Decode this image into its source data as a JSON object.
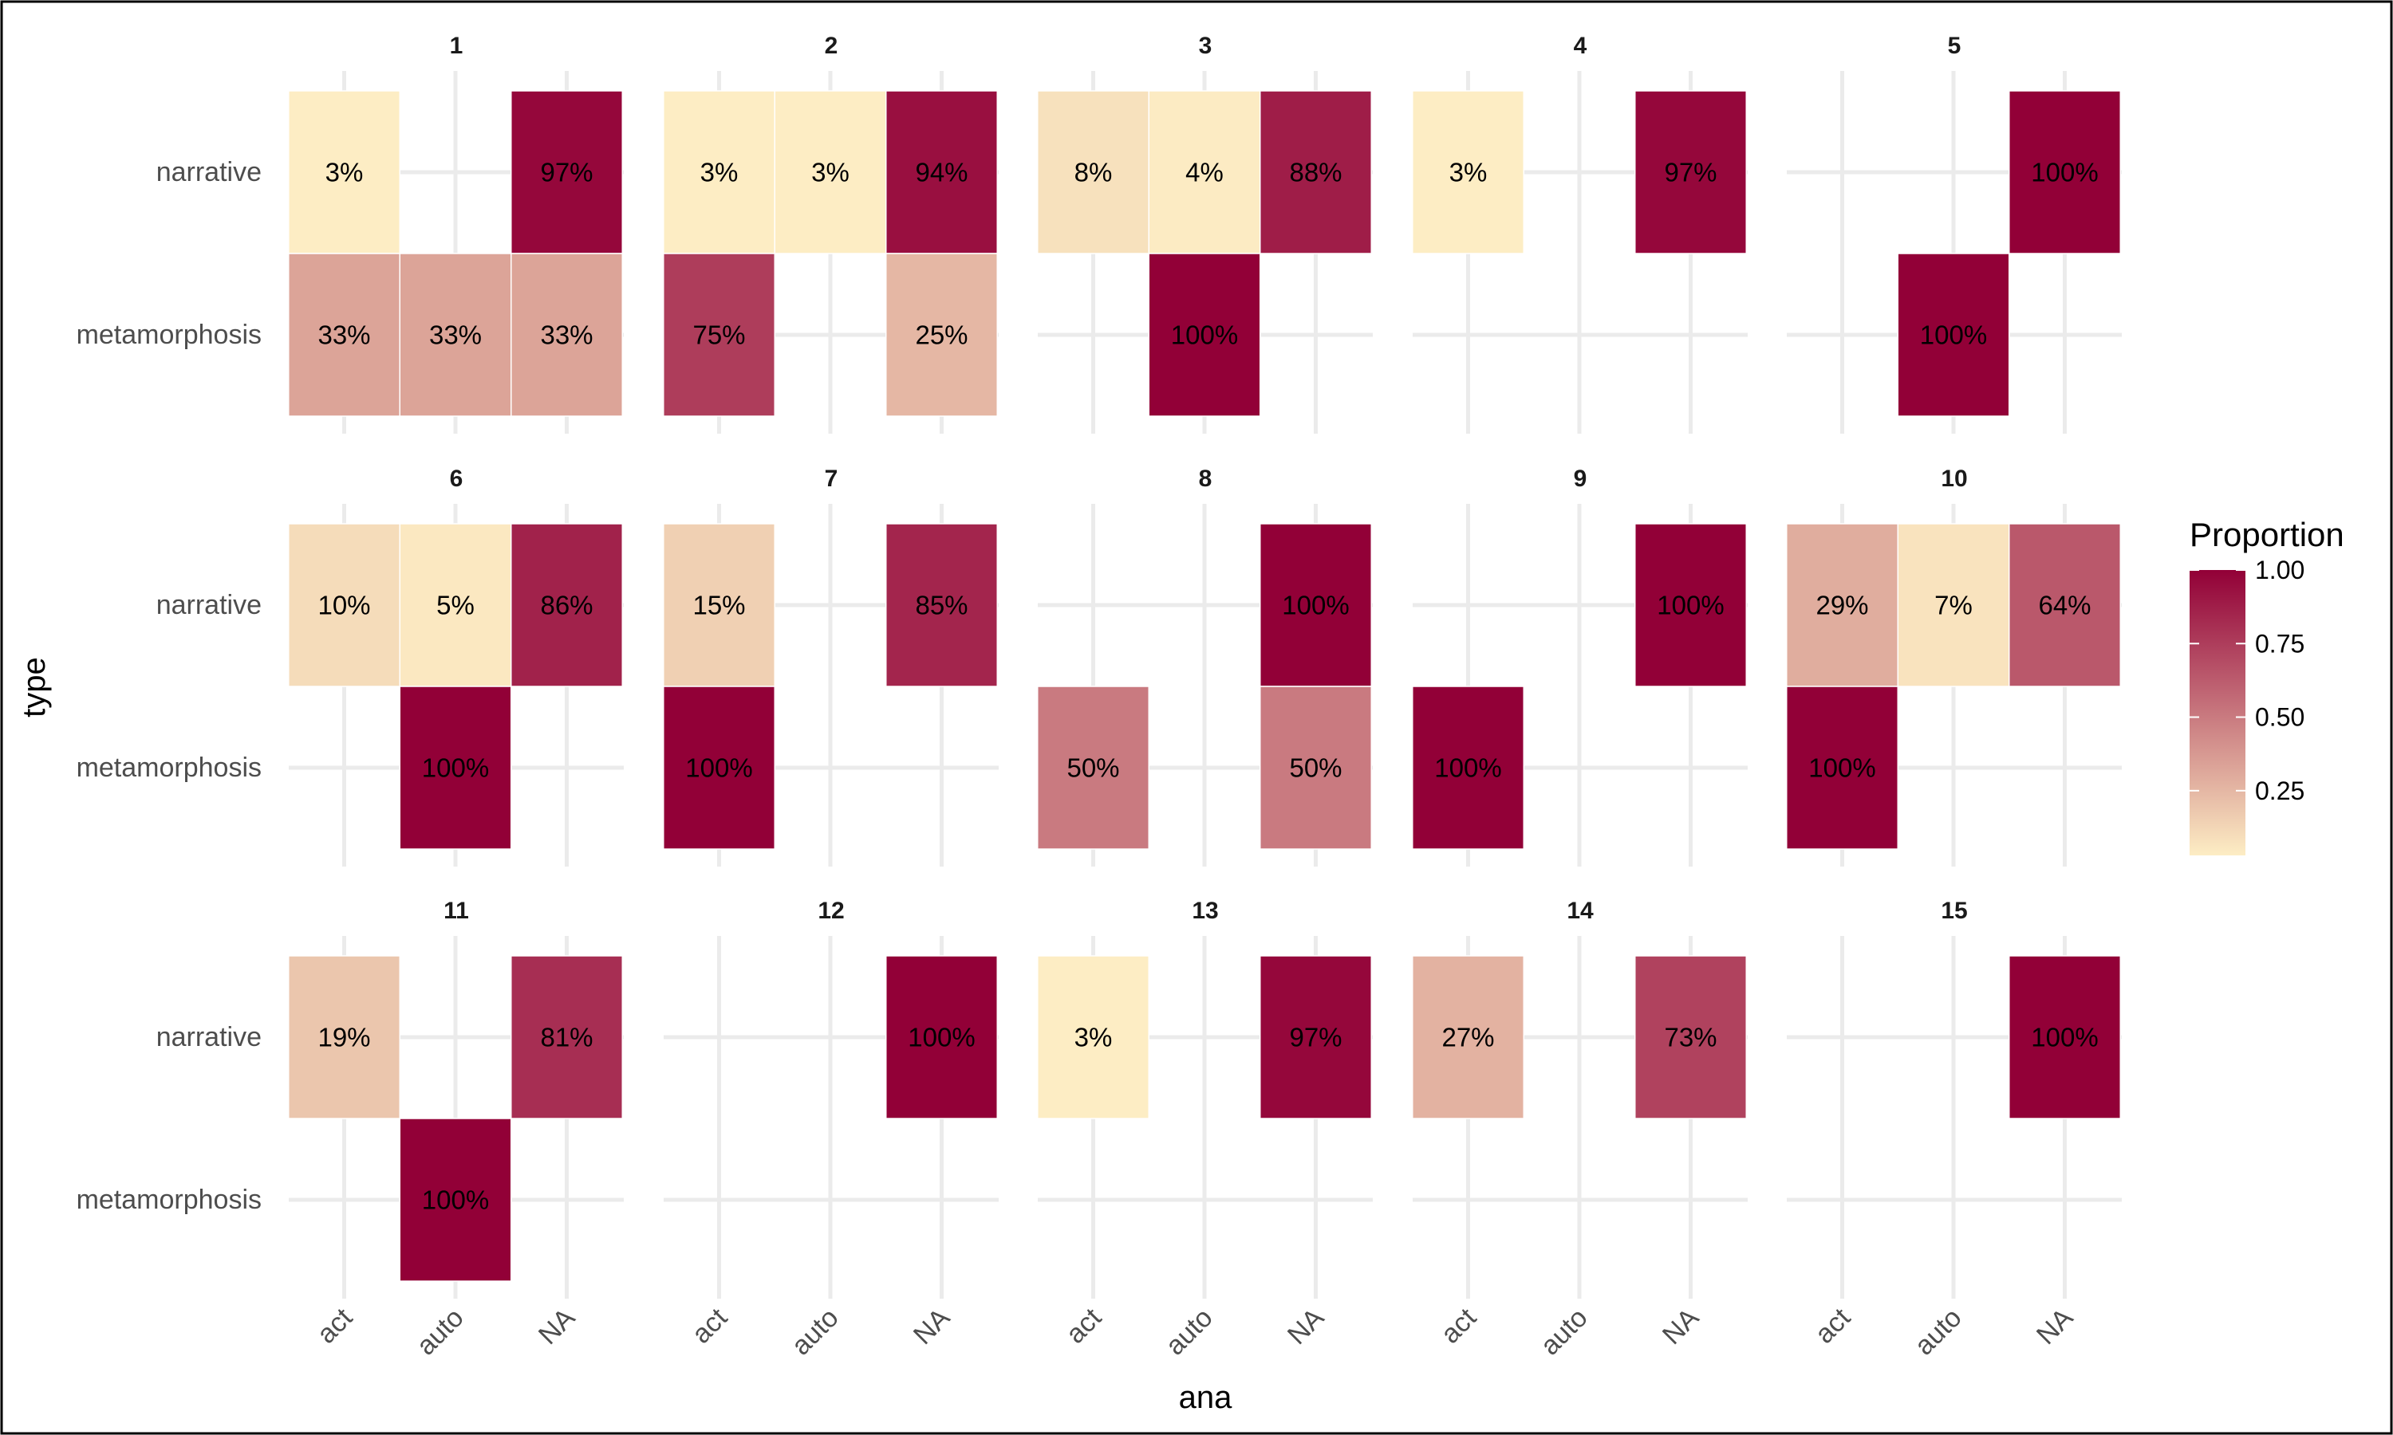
{
  "chart_data": {
    "type": "heatmap",
    "facet_variable": "facet",
    "facets": [
      "1",
      "2",
      "3",
      "4",
      "5",
      "6",
      "7",
      "8",
      "9",
      "10",
      "11",
      "12",
      "13",
      "14",
      "15"
    ],
    "x_categories": [
      "act",
      "auto",
      "NA"
    ],
    "y_categories": [
      "narrative",
      "metamorphosis"
    ],
    "xlabel": "ana",
    "ylabel": "type",
    "legend": {
      "title": "Proportion",
      "ticks": [
        "1.00",
        "0.75",
        "0.50",
        "0.25"
      ],
      "tick_values": [
        1.0,
        0.75,
        0.5,
        0.25
      ],
      "range": [
        0.03,
        1.0
      ],
      "low_color": "#fdedc4",
      "high_color": "#920037",
      "placement": "right"
    },
    "cells": [
      {
        "facet": "1",
        "x": "act",
        "y": "narrative",
        "value": 0.03,
        "label": "3%"
      },
      {
        "facet": "1",
        "x": "NA",
        "y": "narrative",
        "value": 0.97,
        "label": "97%"
      },
      {
        "facet": "1",
        "x": "act",
        "y": "metamorphosis",
        "value": 0.33,
        "label": "33%"
      },
      {
        "facet": "1",
        "x": "auto",
        "y": "metamorphosis",
        "value": 0.33,
        "label": "33%"
      },
      {
        "facet": "1",
        "x": "NA",
        "y": "metamorphosis",
        "value": 0.33,
        "label": "33%"
      },
      {
        "facet": "2",
        "x": "act",
        "y": "narrative",
        "value": 0.03,
        "label": "3%"
      },
      {
        "facet": "2",
        "x": "auto",
        "y": "narrative",
        "value": 0.03,
        "label": "3%"
      },
      {
        "facet": "2",
        "x": "NA",
        "y": "narrative",
        "value": 0.94,
        "label": "94%"
      },
      {
        "facet": "2",
        "x": "act",
        "y": "metamorphosis",
        "value": 0.75,
        "label": "75%"
      },
      {
        "facet": "2",
        "x": "NA",
        "y": "metamorphosis",
        "value": 0.25,
        "label": "25%"
      },
      {
        "facet": "3",
        "x": "act",
        "y": "narrative",
        "value": 0.08,
        "label": "8%"
      },
      {
        "facet": "3",
        "x": "auto",
        "y": "narrative",
        "value": 0.04,
        "label": "4%"
      },
      {
        "facet": "3",
        "x": "NA",
        "y": "narrative",
        "value": 0.88,
        "label": "88%"
      },
      {
        "facet": "3",
        "x": "auto",
        "y": "metamorphosis",
        "value": 1.0,
        "label": "100%"
      },
      {
        "facet": "4",
        "x": "act",
        "y": "narrative",
        "value": 0.03,
        "label": "3%"
      },
      {
        "facet": "4",
        "x": "NA",
        "y": "narrative",
        "value": 0.97,
        "label": "97%"
      },
      {
        "facet": "5",
        "x": "NA",
        "y": "narrative",
        "value": 1.0,
        "label": "100%"
      },
      {
        "facet": "5",
        "x": "auto",
        "y": "metamorphosis",
        "value": 1.0,
        "label": "100%"
      },
      {
        "facet": "6",
        "x": "act",
        "y": "narrative",
        "value": 0.1,
        "label": "10%"
      },
      {
        "facet": "6",
        "x": "auto",
        "y": "narrative",
        "value": 0.05,
        "label": "5%"
      },
      {
        "facet": "6",
        "x": "NA",
        "y": "narrative",
        "value": 0.86,
        "label": "86%"
      },
      {
        "facet": "6",
        "x": "auto",
        "y": "metamorphosis",
        "value": 1.0,
        "label": "100%"
      },
      {
        "facet": "7",
        "x": "act",
        "y": "narrative",
        "value": 0.15,
        "label": "15%"
      },
      {
        "facet": "7",
        "x": "NA",
        "y": "narrative",
        "value": 0.85,
        "label": "85%"
      },
      {
        "facet": "7",
        "x": "act",
        "y": "metamorphosis",
        "value": 1.0,
        "label": "100%"
      },
      {
        "facet": "8",
        "x": "NA",
        "y": "narrative",
        "value": 1.0,
        "label": "100%"
      },
      {
        "facet": "8",
        "x": "act",
        "y": "metamorphosis",
        "value": 0.5,
        "label": "50%"
      },
      {
        "facet": "8",
        "x": "NA",
        "y": "metamorphosis",
        "value": 0.5,
        "label": "50%"
      },
      {
        "facet": "9",
        "x": "NA",
        "y": "narrative",
        "value": 1.0,
        "label": "100%"
      },
      {
        "facet": "9",
        "x": "act",
        "y": "metamorphosis",
        "value": 1.0,
        "label": "100%"
      },
      {
        "facet": "10",
        "x": "act",
        "y": "narrative",
        "value": 0.29,
        "label": "29%"
      },
      {
        "facet": "10",
        "x": "auto",
        "y": "narrative",
        "value": 0.07,
        "label": "7%"
      },
      {
        "facet": "10",
        "x": "NA",
        "y": "narrative",
        "value": 0.64,
        "label": "64%"
      },
      {
        "facet": "10",
        "x": "act",
        "y": "metamorphosis",
        "value": 1.0,
        "label": "100%"
      },
      {
        "facet": "11",
        "x": "act",
        "y": "narrative",
        "value": 0.19,
        "label": "19%"
      },
      {
        "facet": "11",
        "x": "NA",
        "y": "narrative",
        "value": 0.81,
        "label": "81%"
      },
      {
        "facet": "11",
        "x": "auto",
        "y": "metamorphosis",
        "value": 1.0,
        "label": "100%"
      },
      {
        "facet": "12",
        "x": "NA",
        "y": "narrative",
        "value": 1.0,
        "label": "100%"
      },
      {
        "facet": "13",
        "x": "act",
        "y": "narrative",
        "value": 0.03,
        "label": "3%"
      },
      {
        "facet": "13",
        "x": "NA",
        "y": "narrative",
        "value": 0.97,
        "label": "97%"
      },
      {
        "facet": "14",
        "x": "act",
        "y": "narrative",
        "value": 0.27,
        "label": "27%"
      },
      {
        "facet": "14",
        "x": "NA",
        "y": "narrative",
        "value": 0.73,
        "label": "73%"
      },
      {
        "facet": "15",
        "x": "NA",
        "y": "narrative",
        "value": 1.0,
        "label": "100%"
      }
    ],
    "grid": true
  }
}
